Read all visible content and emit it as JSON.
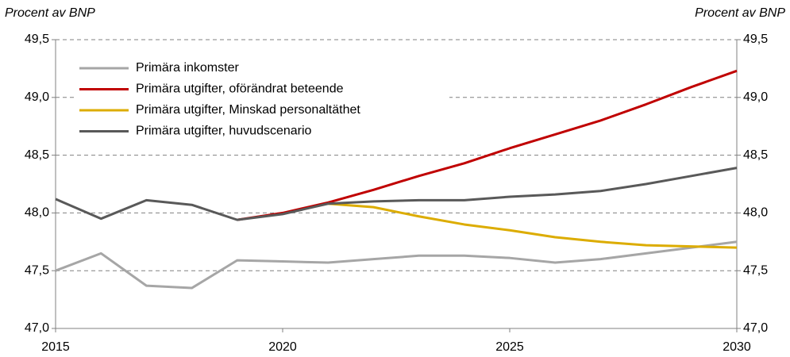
{
  "chart_data": {
    "type": "line",
    "y_label": "Procent av BNP",
    "y2_label": "Procent av BNP",
    "x": [
      2015,
      2016,
      2017,
      2018,
      2019,
      2020,
      2021,
      2022,
      2023,
      2024,
      2025,
      2026,
      2027,
      2028,
      2029,
      2030
    ],
    "xlim": [
      2015,
      2030
    ],
    "xticks": [
      2015,
      2020,
      2025,
      2030
    ],
    "ylim": [
      47.0,
      49.5
    ],
    "yticks": [
      {
        "value": 47.0,
        "label": "47,0"
      },
      {
        "value": 47.5,
        "label": "47,5"
      },
      {
        "value": 48.0,
        "label": "48,0"
      },
      {
        "value": 48.5,
        "label": "48,5"
      },
      {
        "value": 49.0,
        "label": "49,0"
      },
      {
        "value": 49.5,
        "label": "49,5"
      }
    ],
    "y2lim": [
      47.0,
      49.5
    ],
    "y2ticks": [
      {
        "value": 47.0,
        "label": "47,0"
      },
      {
        "value": 47.5,
        "label": "47,5"
      },
      {
        "value": 48.0,
        "label": "48,0"
      },
      {
        "value": 48.5,
        "label": "48,5"
      },
      {
        "value": 49.0,
        "label": "49,0"
      },
      {
        "value": 49.5,
        "label": "49,5"
      }
    ],
    "grid": true,
    "legend": "upper left",
    "series": [
      {
        "name": "Primära inkomster",
        "color": "#a6a6a6",
        "values": [
          47.5,
          47.65,
          47.37,
          47.35,
          47.59,
          47.58,
          47.57,
          47.6,
          47.63,
          47.63,
          47.61,
          47.57,
          47.6,
          47.65,
          47.7,
          47.75
        ]
      },
      {
        "name": "Primära utgifter, oförändrat beteende",
        "color": "#c00000",
        "values": [
          null,
          null,
          null,
          null,
          47.94,
          48.0,
          48.09,
          48.2,
          48.32,
          48.43,
          48.56,
          48.68,
          48.8,
          48.94,
          49.09,
          49.23
        ]
      },
      {
        "name": "Primära utgifter, Minskad personaltäthet",
        "color": "#dcac00",
        "values": [
          null,
          null,
          null,
          null,
          null,
          null,
          48.08,
          48.05,
          47.97,
          47.9,
          47.85,
          47.79,
          47.75,
          47.72,
          47.71,
          47.7
        ]
      },
      {
        "name": "Primära utgifter, huvudscenario",
        "color": "#595959",
        "values": [
          48.12,
          47.95,
          48.11,
          48.07,
          47.94,
          47.99,
          48.08,
          48.1,
          48.11,
          48.11,
          48.14,
          48.16,
          48.19,
          48.25,
          48.32,
          48.39
        ]
      }
    ]
  }
}
